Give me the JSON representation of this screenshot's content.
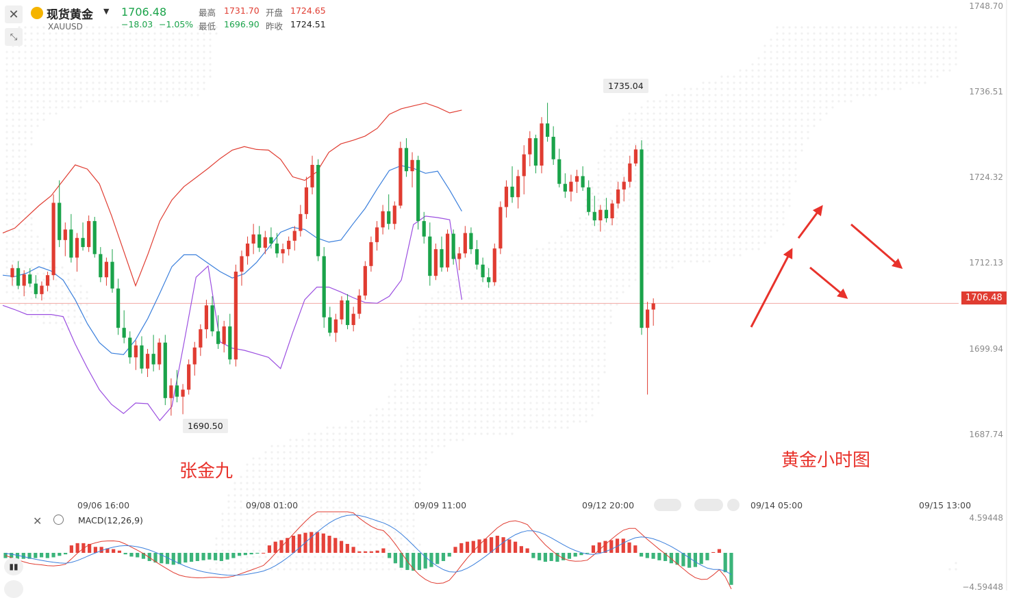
{
  "symbol": {
    "name": "现货黄金",
    "code": "XAUUSD",
    "price": "1706.48",
    "change": "−18.03",
    "change_pct": "−1.05%",
    "high_label": "最高",
    "high": "1731.70",
    "open_label": "开盘",
    "open": "1724.65",
    "low_label": "最低",
    "low": "1696.90",
    "prev_close_label": "昨收",
    "prev_close": "1724.51"
  },
  "annotations": {
    "author": "张金九",
    "title": "黄金小时图",
    "high_callout": "1735.04",
    "low_callout": "1690.50"
  },
  "colors": {
    "up": "#e03c31",
    "down": "#1aa34a",
    "boll_upper": "#e03c31",
    "boll_mid": "#3a7fdc",
    "boll_lower": "#9b4ee0",
    "macd_pos": "#e5423a",
    "macd_neg": "#3bb47a"
  },
  "chart_data": [
    {
      "type": "candlestick",
      "x_ticks": [
        "09/06 16:00",
        "09/08 01:00",
        "09/09 11:00",
        "09/12 20:00",
        "09/14 05:00",
        "09/15 13:00"
      ],
      "y_ticks": [
        "1748.70",
        "1736.51",
        "1724.32",
        "1712.13",
        "1699.94",
        "1687.74"
      ],
      "ylim": [
        1681.0,
        1748.7
      ],
      "last_price": 1706.48,
      "indicators": [
        "BOLL upper",
        "BOLL middle",
        "BOLL lower"
      ],
      "candles": [
        [
          1710.2,
          1712.0,
          1709.0,
          1711.5
        ],
        [
          1711.5,
          1712.5,
          1708.5,
          1709.0
        ],
        [
          1709.0,
          1711.2,
          1707.5,
          1710.6
        ],
        [
          1710.6,
          1711.5,
          1708.8,
          1709.3
        ],
        [
          1709.3,
          1710.5,
          1707.2,
          1707.8
        ],
        [
          1707.8,
          1709.6,
          1706.9,
          1709.0
        ],
        [
          1709.0,
          1711.0,
          1708.2,
          1710.5
        ],
        [
          1710.5,
          1722.0,
          1709.8,
          1720.8
        ],
        [
          1720.8,
          1724.0,
          1714.5,
          1715.5
        ],
        [
          1715.5,
          1718.0,
          1713.2,
          1717.0
        ],
        [
          1717.0,
          1719.2,
          1712.3,
          1713.0
        ],
        [
          1713.0,
          1716.5,
          1711.0,
          1715.8
        ],
        [
          1715.8,
          1718.0,
          1714.0,
          1714.5
        ],
        [
          1714.5,
          1719.0,
          1713.8,
          1718.2
        ],
        [
          1718.2,
          1718.8,
          1713.0,
          1713.5
        ],
        [
          1713.5,
          1714.5,
          1709.5,
          1710.2
        ],
        [
          1710.2,
          1713.0,
          1709.0,
          1712.4
        ],
        [
          1712.4,
          1714.2,
          1708.0,
          1708.6
        ],
        [
          1708.6,
          1710.0,
          1702.0,
          1703.0
        ],
        [
          1703.0,
          1705.5,
          1700.8,
          1701.6
        ],
        [
          1701.6,
          1702.5,
          1697.9,
          1698.8
        ],
        [
          1698.8,
          1701.2,
          1697.0,
          1700.5
        ],
        [
          1700.5,
          1701.8,
          1696.5,
          1697.2
        ],
        [
          1697.2,
          1700.0,
          1696.0,
          1699.3
        ],
        [
          1699.3,
          1702.0,
          1696.8,
          1697.8
        ],
        [
          1697.8,
          1701.5,
          1697.0,
          1700.9
        ],
        [
          1700.9,
          1702.0,
          1692.0,
          1693.0
        ],
        [
          1693.0,
          1695.8,
          1690.5,
          1694.8
        ],
        [
          1694.8,
          1697.0,
          1692.4,
          1693.2
        ],
        [
          1693.2,
          1695.0,
          1690.7,
          1694.2
        ],
        [
          1694.2,
          1698.5,
          1693.5,
          1697.8
        ],
        [
          1697.8,
          1701.0,
          1696.2,
          1700.2
        ],
        [
          1700.2,
          1703.5,
          1699.0,
          1702.8
        ],
        [
          1702.8,
          1707.0,
          1701.5,
          1706.2
        ],
        [
          1706.2,
          1707.5,
          1701.8,
          1702.5
        ],
        [
          1702.5,
          1704.8,
          1700.0,
          1700.7
        ],
        [
          1700.7,
          1704.0,
          1699.5,
          1703.2
        ],
        [
          1703.2,
          1705.0,
          1697.8,
          1698.5
        ],
        [
          1698.5,
          1712.0,
          1697.5,
          1711.0
        ],
        [
          1711.0,
          1714.0,
          1709.0,
          1713.2
        ],
        [
          1713.2,
          1716.0,
          1712.0,
          1715.0
        ],
        [
          1715.0,
          1717.8,
          1713.5,
          1716.3
        ],
        [
          1716.3,
          1717.5,
          1713.8,
          1714.4
        ],
        [
          1714.4,
          1716.8,
          1713.5,
          1715.9
        ],
        [
          1715.9,
          1717.3,
          1714.3,
          1715.0
        ],
        [
          1715.0,
          1716.5,
          1713.0,
          1713.6
        ],
        [
          1713.6,
          1715.0,
          1712.2,
          1714.2
        ],
        [
          1714.2,
          1716.0,
          1713.3,
          1715.4
        ],
        [
          1715.4,
          1717.5,
          1714.0,
          1716.8
        ],
        [
          1716.8,
          1720.5,
          1716.0,
          1719.2
        ],
        [
          1719.2,
          1724.5,
          1718.5,
          1723.0
        ],
        [
          1723.0,
          1727.5,
          1722.0,
          1726.2
        ],
        [
          1726.2,
          1727.0,
          1712.5,
          1713.2
        ],
        [
          1713.2,
          1714.5,
          1703.0,
          1704.5
        ],
        [
          1704.5,
          1706.0,
          1701.8,
          1702.3
        ],
        [
          1702.3,
          1705.0,
          1701.0,
          1704.2
        ],
        [
          1704.2,
          1707.5,
          1703.5,
          1706.9
        ],
        [
          1706.9,
          1707.8,
          1702.8,
          1703.4
        ],
        [
          1703.4,
          1706.0,
          1702.5,
          1705.0
        ],
        [
          1705.0,
          1708.5,
          1704.3,
          1707.6
        ],
        [
          1707.6,
          1712.5,
          1707.0,
          1711.8
        ],
        [
          1711.8,
          1716.0,
          1711.0,
          1715.2
        ],
        [
          1715.2,
          1718.2,
          1714.0,
          1717.3
        ],
        [
          1717.3,
          1720.5,
          1716.3,
          1719.6
        ],
        [
          1719.6,
          1722.0,
          1717.0,
          1717.8
        ],
        [
          1717.8,
          1721.0,
          1717.0,
          1720.4
        ],
        [
          1720.4,
          1729.5,
          1720.0,
          1728.6
        ],
        [
          1728.6,
          1730.0,
          1724.5,
          1725.3
        ],
        [
          1725.3,
          1728.0,
          1723.0,
          1726.9
        ],
        [
          1726.9,
          1727.5,
          1717.0,
          1718.2
        ],
        [
          1718.2,
          1719.5,
          1715.0,
          1716.0
        ],
        [
          1716.0,
          1718.0,
          1709.0,
          1710.4
        ],
        [
          1710.4,
          1715.0,
          1709.8,
          1714.2
        ],
        [
          1714.2,
          1716.0,
          1711.0,
          1711.6
        ],
        [
          1711.6,
          1717.0,
          1711.0,
          1716.4
        ],
        [
          1716.4,
          1717.0,
          1712.0,
          1712.8
        ],
        [
          1712.8,
          1714.5,
          1711.2,
          1713.6
        ],
        [
          1713.6,
          1717.5,
          1713.0,
          1716.5
        ],
        [
          1716.5,
          1717.3,
          1713.5,
          1714.2
        ],
        [
          1714.2,
          1715.5,
          1711.3,
          1712.0
        ],
        [
          1712.0,
          1713.0,
          1709.5,
          1710.2
        ],
        [
          1710.2,
          1711.5,
          1708.7,
          1709.5
        ],
        [
          1709.5,
          1715.0,
          1709.0,
          1714.3
        ],
        [
          1714.3,
          1721.0,
          1713.5,
          1720.2
        ],
        [
          1720.2,
          1724.0,
          1718.7,
          1723.1
        ],
        [
          1723.1,
          1726.0,
          1720.8,
          1721.6
        ],
        [
          1721.6,
          1725.5,
          1720.0,
          1724.6
        ],
        [
          1724.6,
          1729.0,
          1722.0,
          1727.7
        ],
        [
          1727.7,
          1731.0,
          1726.0,
          1730.0
        ],
        [
          1730.0,
          1730.5,
          1725.0,
          1726.1
        ],
        [
          1726.1,
          1733.0,
          1725.0,
          1732.1
        ],
        [
          1732.1,
          1735.04,
          1729.5,
          1730.2
        ],
        [
          1730.2,
          1731.7,
          1726.2,
          1727.0
        ],
        [
          1727.0,
          1728.5,
          1723.0,
          1723.5
        ],
        [
          1723.5,
          1725.0,
          1721.5,
          1722.4
        ],
        [
          1722.4,
          1724.8,
          1721.0,
          1723.8
        ],
        [
          1723.8,
          1725.5,
          1722.2,
          1724.6
        ],
        [
          1724.6,
          1726.0,
          1722.5,
          1723.0
        ],
        [
          1723.0,
          1724.0,
          1719.0,
          1719.5
        ],
        [
          1719.5,
          1721.8,
          1717.5,
          1718.3
        ],
        [
          1718.3,
          1720.5,
          1716.7,
          1719.8
        ],
        [
          1719.8,
          1721.5,
          1718.0,
          1718.6
        ],
        [
          1718.6,
          1721.2,
          1717.6,
          1720.7
        ],
        [
          1720.7,
          1723.8,
          1720.0,
          1722.7
        ],
        [
          1722.7,
          1724.5,
          1721.0,
          1723.8
        ],
        [
          1723.8,
          1727.5,
          1723.0,
          1726.4
        ],
        [
          1726.4,
          1729.0,
          1726.0,
          1728.4
        ],
        [
          1728.4,
          1729.7,
          1702.0,
          1703.0
        ],
        [
          1703.0,
          1706.7,
          1693.5,
          1705.6
        ],
        [
          1705.6,
          1707.2,
          1703.3,
          1706.48
        ]
      ],
      "boll_upper": [
        1716.5,
        1717.2,
        1718.8,
        1720.4,
        1721.8,
        1724.0,
        1726.2,
        1725.6,
        1723.5,
        1719.0,
        1714.0,
        1709.0,
        1713.4,
        1718.2,
        1721.2,
        1723.1,
        1724.4,
        1725.7,
        1727.1,
        1728.3,
        1728.8,
        1728.4,
        1728.3,
        1727.0,
        1724.5,
        1724.0,
        1725.2,
        1728.0,
        1729.2,
        1729.7,
        1730.3,
        1731.4,
        1733.4,
        1734.2,
        1734.6,
        1735.0,
        1734.4,
        1733.6,
        1734.0
      ],
      "boll_mid": [
        1710.5,
        1710.3,
        1710.8,
        1711.7,
        1711.1,
        1709.8,
        1707.0,
        1703.6,
        1700.9,
        1699.4,
        1699.2,
        1701.3,
        1704.3,
        1707.9,
        1711.7,
        1713.4,
        1713.4,
        1712.2,
        1711.0,
        1710.1,
        1710.7,
        1712.3,
        1714.4,
        1716.6,
        1717.3,
        1717.0,
        1715.8,
        1715.2,
        1715.5,
        1717.8,
        1720.0,
        1722.8,
        1725.4,
        1726.1,
        1725.7,
        1725.0,
        1725.3,
        1722.6,
        1719.6
      ],
      "boll_lower": [
        1706.2,
        1705.6,
        1704.9,
        1704.9,
        1704.9,
        1704.6,
        1700.7,
        1697.3,
        1694.2,
        1692.1,
        1690.8,
        1692.3,
        1692.2,
        1689.8,
        1691.8,
        1700.8,
        1710.2,
        1711.8,
        1701.0,
        1700.1,
        1699.8,
        1699.3,
        1698.8,
        1697.2,
        1702.3,
        1707.0,
        1708.8,
        1708.8,
        1708.1,
        1707.3,
        1706.6,
        1706.5,
        1707.5,
        1709.8,
        1717.7,
        1718.9,
        1718.7,
        1718.4,
        1707.0
      ]
    },
    {
      "type": "bar",
      "title": "MACD(12,26,9)",
      "y_ticks": [
        "4.59448",
        "−4.59448"
      ],
      "ylim": [
        -4.59448,
        4.59448
      ],
      "indicators": [
        "DIF",
        "DEA",
        "MACD histogram"
      ],
      "histogram": [
        -0.7,
        -0.7,
        -0.8,
        -0.8,
        -0.8,
        -0.7,
        -0.6,
        -0.7,
        -0.6,
        -0.4,
        -0.2,
        1.0,
        1.3,
        1.3,
        1.2,
        0.8,
        0.8,
        0.6,
        0.5,
        0.3,
        -0.2,
        -0.5,
        -0.6,
        -0.8,
        -1.1,
        -1.3,
        -1.4,
        -1.5,
        -1.6,
        -1.5,
        -1.3,
        -1.2,
        -1.1,
        -1.0,
        -0.9,
        -1.0,
        -1.1,
        -0.9,
        -0.7,
        -0.4,
        -0.3,
        -0.2,
        -0.1,
        0.0,
        1.0,
        1.5,
        1.7,
        2.0,
        2.3,
        2.5,
        2.7,
        2.8,
        2.8,
        2.6,
        2.3,
        2.0,
        1.6,
        1.2,
        0.8,
        0.2,
        0.2,
        0.2,
        0.3,
        0.6,
        -0.7,
        -1.4,
        -2.0,
        -2.3,
        -2.4,
        -2.3,
        -2.1,
        -1.9,
        -1.5,
        -1.1,
        -0.5,
        0.8,
        1.3,
        1.5,
        1.6,
        1.8,
        1.9,
        2.1,
        2.3,
        2.1,
        1.8,
        1.5,
        0.9,
        0.6,
        -0.7,
        -1.0,
        -1.2,
        -1.1,
        -1.2,
        -1.0,
        -0.8,
        -0.5,
        -0.3,
        -0.1,
        1.0,
        1.4,
        1.6,
        1.7,
        1.9,
        1.9,
        1.4,
        1.0,
        -0.5,
        -0.7,
        -0.8,
        -1.0,
        -1.1,
        -1.4,
        -1.6,
        -1.8,
        -2.0,
        -1.9,
        -1.5,
        -1.0,
        0.1,
        0.5,
        -2.6,
        -4.3
      ]
    }
  ]
}
